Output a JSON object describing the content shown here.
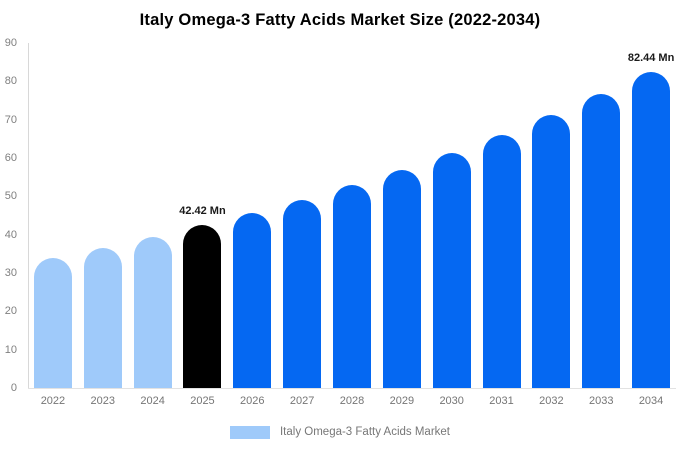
{
  "title": "Italy Omega-3 Fatty Acids Market Size (2022-2034)",
  "chart_data": {
    "type": "bar",
    "title": "Italy Omega-3 Fatty Acids Market Size (2022-2034)",
    "categories": [
      "2022",
      "2023",
      "2024",
      "2025",
      "2026",
      "2027",
      "2028",
      "2029",
      "2030",
      "2031",
      "2032",
      "2033",
      "2034"
    ],
    "values": [
      33.99,
      36.6,
      39.4,
      42.42,
      45.67,
      49.17,
      52.94,
      57.0,
      61.37,
      66.07,
      71.13,
      76.58,
      82.44
    ],
    "bar_colors": [
      "#9FCAFA",
      "#9FCAFA",
      "#9FCAFA",
      "#000000",
      "#0568F2",
      "#0568F2",
      "#0568F2",
      "#0568F2",
      "#0568F2",
      "#0568F2",
      "#0568F2",
      "#0568F2",
      "#0568F2"
    ],
    "xlabel": "",
    "ylabel": "",
    "ylim": [
      0,
      90
    ],
    "yticks": [
      0,
      10,
      20,
      30,
      40,
      50,
      60,
      70,
      80,
      90
    ],
    "grid": false,
    "legend_position": "bottom",
    "data_labels": [
      {
        "category": "2025",
        "text": "42.42 Mn"
      },
      {
        "category": "2034",
        "text": "82.44 Mn"
      }
    ]
  },
  "legend": {
    "label": "Italy Omega-3 Fatty Acids Market",
    "swatch_color": "#9FCAFA"
  },
  "colors": {
    "light_blue": "#9FCAFA",
    "bright_blue": "#0568F2",
    "highlight_black": "#000000",
    "axis_label": "#7F7F7F",
    "axis_line": "#E2E2E2",
    "data_label_text": "#1A1A1A",
    "background": "#FFFFFF"
  }
}
